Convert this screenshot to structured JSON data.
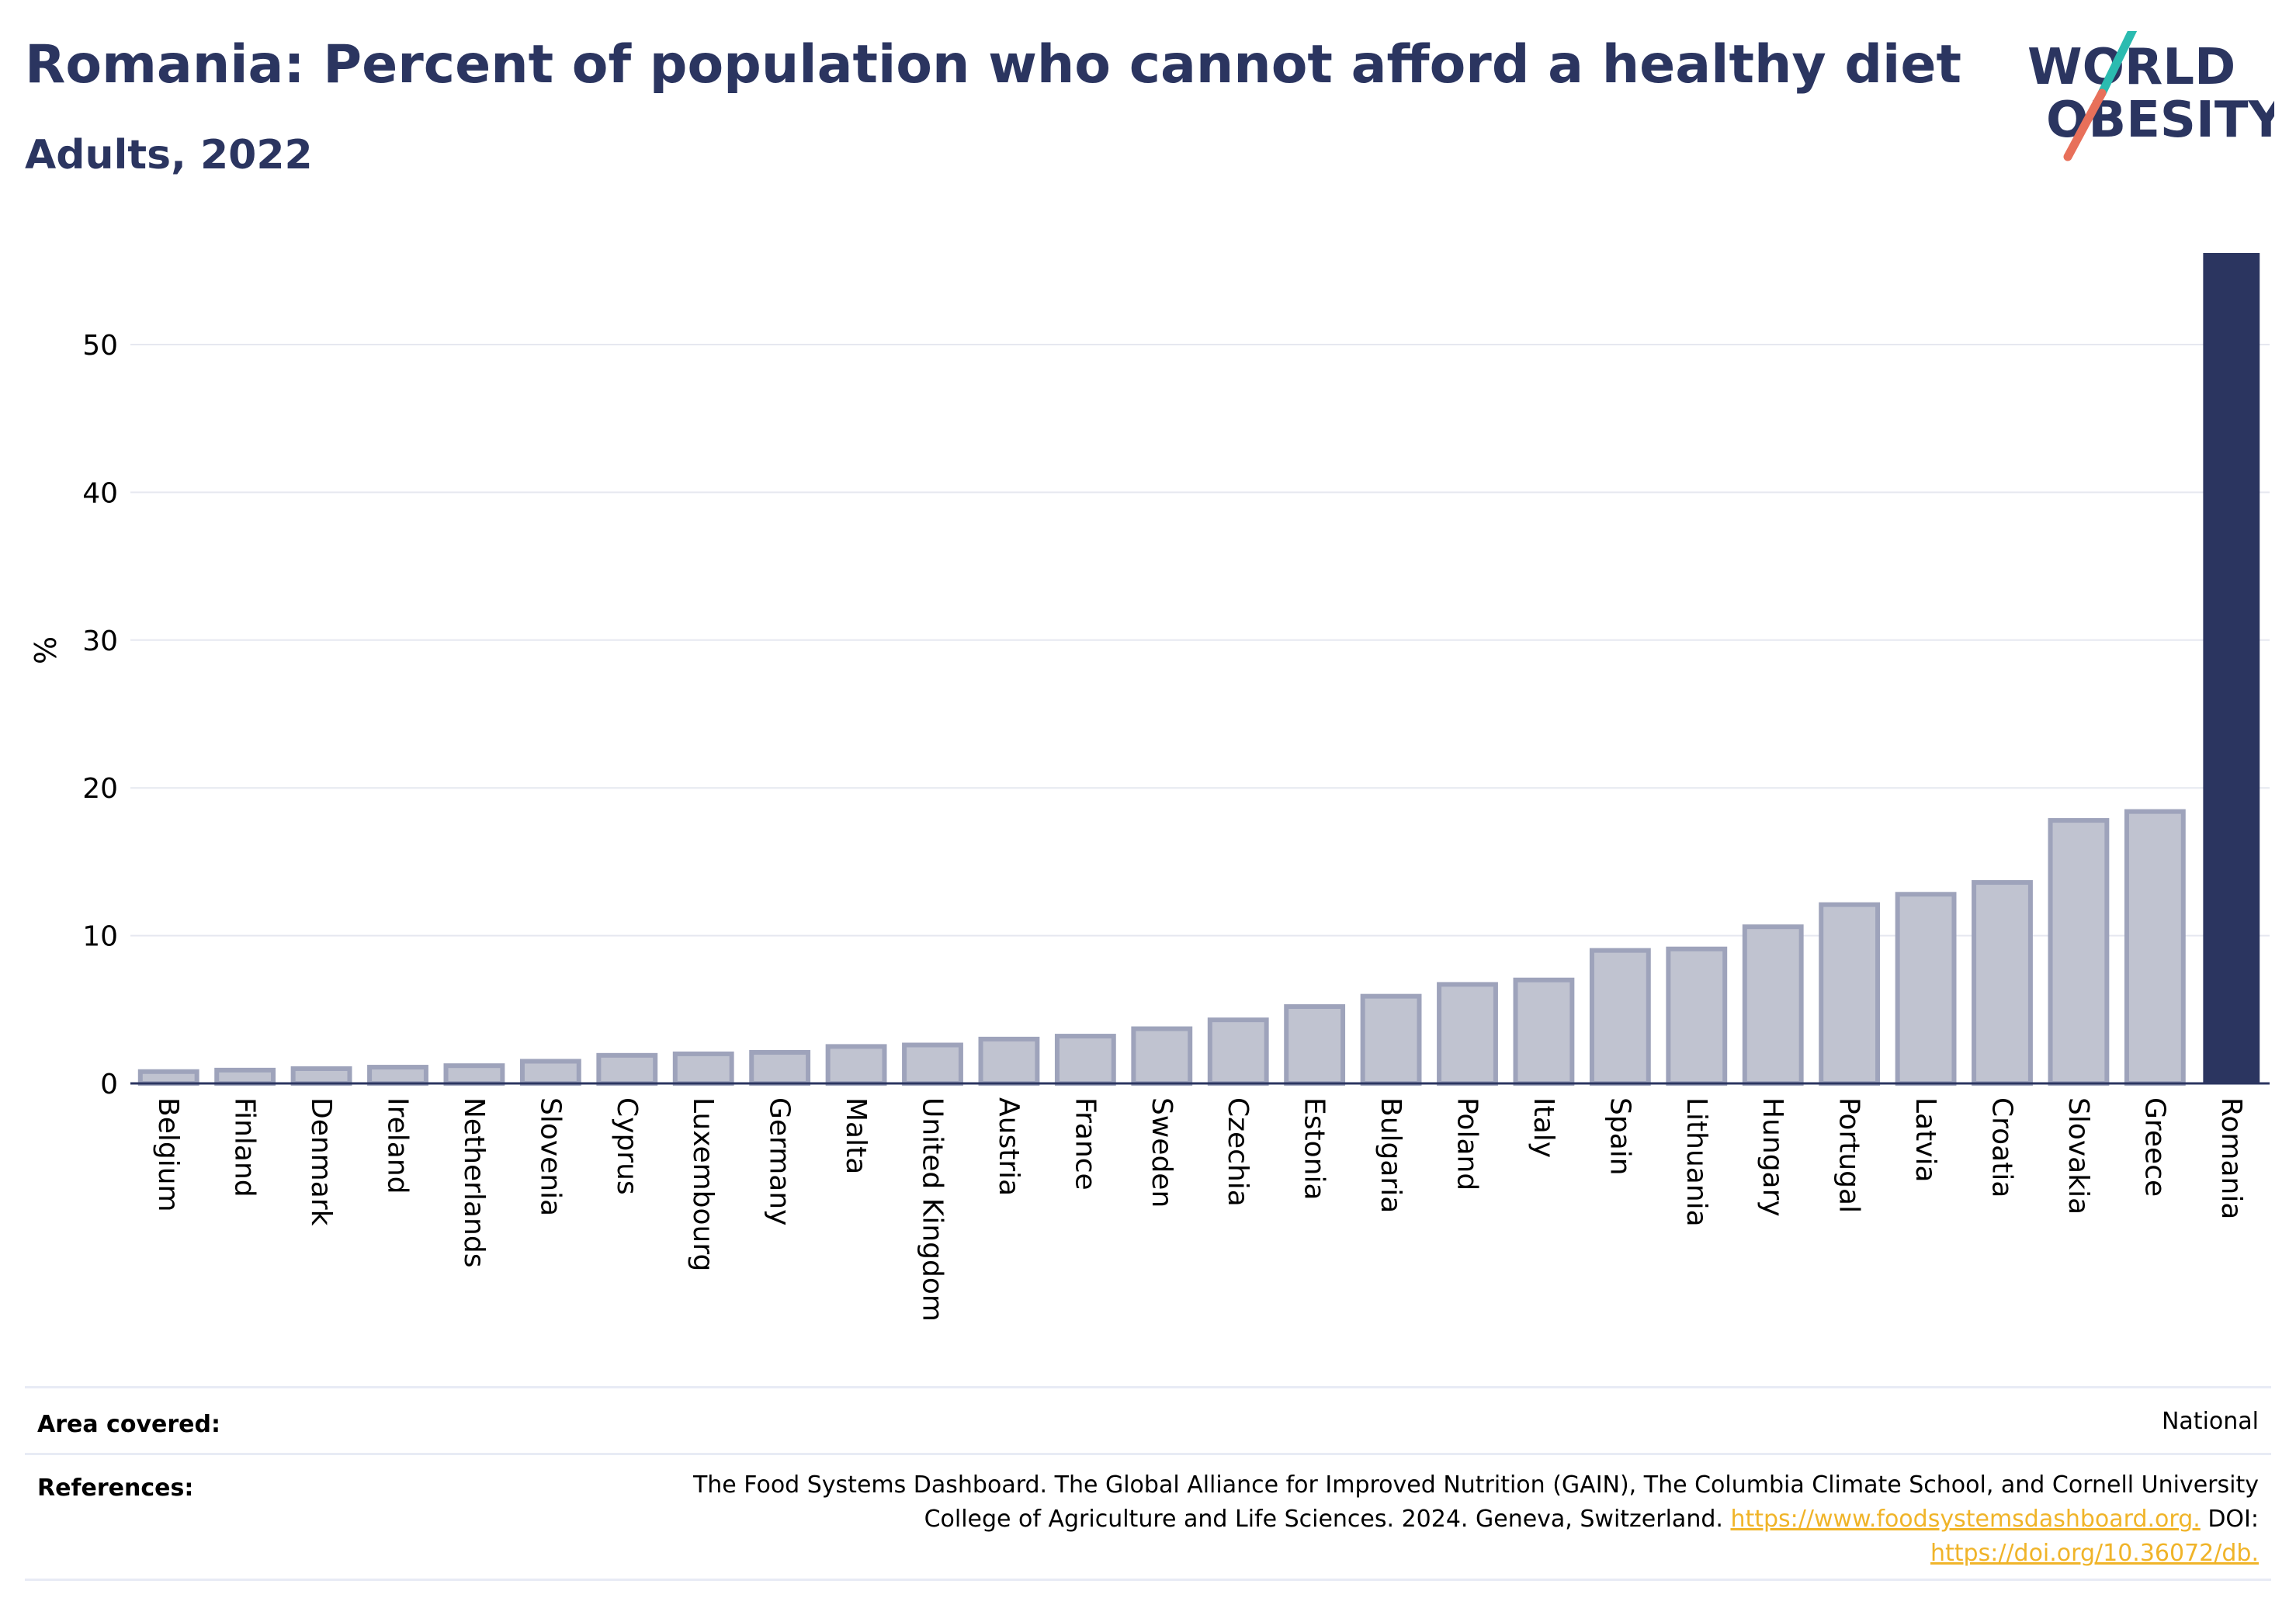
{
  "header": {
    "title": "Romania: Percent of population who cannot afford a healthy diet",
    "subtitle": "Adults, 2022"
  },
  "logo": {
    "line1": "WORLD",
    "line2": "OBESITY"
  },
  "chart_data": {
    "type": "bar",
    "title": "Romania: Percent of population who cannot afford a healthy diet",
    "subtitle": "Adults, 2022",
    "xlabel": "",
    "ylabel": "%",
    "ylim": [
      0,
      57
    ],
    "yticks": [
      0,
      10,
      20,
      30,
      40,
      50
    ],
    "grid": true,
    "legend": "none",
    "categories": [
      "Belgium",
      "Finland",
      "Denmark",
      "Ireland",
      "Netherlands",
      "Slovenia",
      "Cyprus",
      "Luxembourg",
      "Germany",
      "Malta",
      "United Kingdom",
      "Austria",
      "France",
      "Sweden",
      "Czechia",
      "Estonia",
      "Bulgaria",
      "Poland",
      "Italy",
      "Spain",
      "Lithuania",
      "Hungary",
      "Portugal",
      "Latvia",
      "Croatia",
      "Slovakia",
      "Greece",
      "Romania"
    ],
    "values": [
      0.8,
      0.9,
      1.0,
      1.1,
      1.2,
      1.5,
      1.9,
      2.0,
      2.1,
      2.5,
      2.6,
      3.0,
      3.2,
      3.7,
      4.3,
      5.2,
      5.9,
      6.7,
      7.0,
      9.0,
      9.1,
      10.6,
      12.1,
      12.8,
      13.6,
      17.8,
      18.4,
      56.2
    ],
    "highlight": "Romania",
    "colors": {
      "highlight": "#2b3560",
      "other_fill": "#c0c3d0",
      "other_stroke": "#9ea3bb",
      "grid": "#e6e8f0",
      "axis": "#2b3560"
    }
  },
  "footer": {
    "area_label": "Area covered:",
    "area_value": "National",
    "references_label": "References:",
    "references_text1": "The Food Systems Dashboard. The Global Alliance for Improved Nutrition (GAIN), The Columbia Climate School, and Cornell University",
    "references_text2": "College of Agriculture and Life Sciences. 2024. Geneva, Switzerland.",
    "references_link1": "https://www.foodsystemsdashboard.org.",
    "references_doi": "DOI:",
    "references_link2": "https://doi.org/10.36072/db."
  }
}
